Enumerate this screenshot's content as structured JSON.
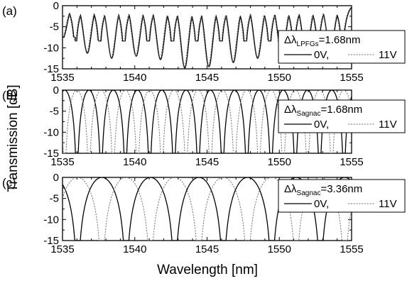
{
  "chart_data": [
    {
      "type": "line",
      "panel_label": "(a)",
      "xlim": [
        1535,
        1555
      ],
      "ylim": [
        -15,
        0
      ],
      "xticks": [
        1535,
        1540,
        1545,
        1550,
        1555
      ],
      "yticks": [
        0,
        -5,
        -10,
        -15
      ],
      "legend": {
        "delta_symbol": "Δλ",
        "subscript": "LPFGs",
        "value": "=1.68nm",
        "placement": "right"
      },
      "period_nm": 1.68,
      "series": [
        {
          "name": "0V",
          "dash": "solid",
          "color": "#000000",
          "dip_wavelengths_nm": [
            1535.05,
            1536.72,
            1538.4,
            1540.1,
            1541.78,
            1543.46,
            1545.13,
            1546.82,
            1548.5,
            1550.18,
            1551.86,
            1553.54
          ],
          "dip_depths_db": [
            -7.5,
            -11.3,
            -12.5,
            -12,
            -12.8,
            -14.8,
            -14.5,
            -13.5,
            -12.5,
            -12,
            -11.5,
            -10.5
          ]
        },
        {
          "name": "11V",
          "dash": "dotted",
          "color": "#777777",
          "dip_wavelengths_nm": [
            1535.0,
            1536.67,
            1538.36,
            1540.05,
            1541.73,
            1543.41,
            1545.08,
            1546.77,
            1548.45,
            1550.13,
            1551.81,
            1553.5
          ],
          "dip_depths_db": [
            -7.2,
            -11,
            -12.2,
            -11.8,
            -12.5,
            -14.5,
            -14.3,
            -13.2,
            -12.2,
            -11.8,
            -11.2,
            -10.2
          ]
        }
      ]
    },
    {
      "type": "line",
      "panel_label": "(b)",
      "xlim": [
        1535,
        1555
      ],
      "ylim": [
        -15,
        0
      ],
      "xticks": [
        1535,
        1540,
        1545,
        1550,
        1555
      ],
      "yticks": [
        0,
        -5,
        -10,
        -15
      ],
      "legend": {
        "delta_symbol": "Δλ",
        "subscript": "Sagnac",
        "value": "=1.68nm",
        "placement": "right"
      },
      "period_nm": 1.68,
      "series": [
        {
          "name": "0V",
          "dash": "solid",
          "color": "#000000",
          "first_dip_nm": 1535.15,
          "depth_db": -15
        },
        {
          "name": "11V",
          "dash": "dotted",
          "color": "#777777",
          "first_dip_nm": 1535.99,
          "depth_db": -15
        }
      ]
    },
    {
      "type": "line",
      "panel_label": "(c)",
      "xlim": [
        1535,
        1555
      ],
      "ylim": [
        -15,
        0
      ],
      "xticks": [
        1535,
        1540,
        1545,
        1550,
        1555
      ],
      "yticks": [
        0,
        -5,
        -10,
        -15
      ],
      "legend": {
        "delta_symbol": "Δλ",
        "subscript": "Sagnac",
        "value": "=3.36nm",
        "placement": "right"
      },
      "period_nm": 3.36,
      "series": [
        {
          "name": "0V",
          "dash": "solid",
          "color": "#000000",
          "first_dip_nm": 1537.72,
          "depth_db": -15
        },
        {
          "name": "11V",
          "dash": "dotted",
          "color": "#777777",
          "first_dip_nm": 1536.04,
          "depth_db": -15
        }
      ]
    }
  ],
  "xlabel": "Wavelength [nm]",
  "ylabel": "Transmission [dB]",
  "legend_sep": ","
}
